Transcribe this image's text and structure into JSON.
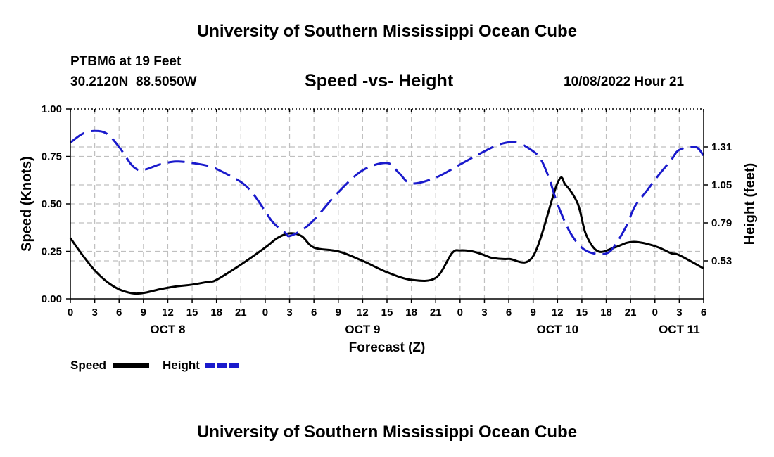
{
  "page": {
    "title": "University of Southern Mississippi Ocean Cube",
    "footer_title": "University of Southern Mississippi Ocean Cube",
    "station": "PTBM6 at 19 Feet",
    "coords": "30.2120N  88.5050W",
    "date_label": "10/08/2022 Hour 21"
  },
  "colors": {
    "speed": "#000000",
    "height": "#1a1acc",
    "grid": "#bfbfbf"
  },
  "chart_data": {
    "type": "line",
    "title": "Speed -vs- Height",
    "xlabel": "Forecast (Z)",
    "ylabel": "Speed (Knots)",
    "y2label": "Height (feet)",
    "xlim": [
      0,
      78
    ],
    "ylim": [
      0,
      1
    ],
    "y2lim": [
      0.27,
      1.57
    ],
    "x_ticks": [
      0,
      3,
      6,
      9,
      12,
      15,
      18,
      21,
      24,
      27,
      30,
      33,
      36,
      39,
      42,
      45,
      48,
      51,
      54,
      57,
      60,
      63,
      66,
      69,
      72,
      75,
      78
    ],
    "x_tick_labels": [
      "0",
      "3",
      "6",
      "9",
      "12",
      "15",
      "18",
      "21",
      "0",
      "3",
      "6",
      "9",
      "12",
      "15",
      "18",
      "21",
      "0",
      "3",
      "6",
      "9",
      "12",
      "15",
      "18",
      "21",
      "0",
      "3",
      "6"
    ],
    "date_labels": [
      {
        "text": "OCT 8",
        "x": 12
      },
      {
        "text": "OCT 9",
        "x": 36
      },
      {
        "text": "OCT 10",
        "x": 60
      },
      {
        "text": "OCT 11",
        "x": 75
      }
    ],
    "y_ticks": [
      0,
      0.25,
      0.5,
      0.75,
      1.0
    ],
    "y_tick_labels": [
      "0.00",
      "0.25",
      "0.50",
      "0.75",
      "1.00"
    ],
    "y2_ticks": [
      0.53,
      0.79,
      1.05,
      1.31
    ],
    "y2_tick_labels": [
      "0.53",
      "0.79",
      "1.05",
      "1.31"
    ],
    "series": [
      {
        "name": "Speed",
        "axis": "left",
        "style": "solid",
        "x": [
          0,
          1.5,
          3,
          4.5,
          6,
          7.5,
          8.5,
          9.5,
          11,
          13,
          15,
          17,
          18,
          21,
          24,
          25.5,
          27,
          28.5,
          30,
          33,
          36,
          39,
          42,
          45,
          47,
          48,
          49.5,
          51,
          52,
          54,
          57,
          60,
          61,
          62.5,
          63.5,
          65,
          67,
          68.5,
          69.5,
          71,
          72.5,
          74,
          75,
          78
        ],
        "values": [
          0.32,
          0.23,
          0.15,
          0.09,
          0.05,
          0.03,
          0.028,
          0.035,
          0.05,
          0.065,
          0.075,
          0.09,
          0.1,
          0.18,
          0.27,
          0.32,
          0.345,
          0.33,
          0.27,
          0.25,
          0.2,
          0.14,
          0.1,
          0.11,
          0.24,
          0.255,
          0.25,
          0.23,
          0.215,
          0.21,
          0.225,
          0.61,
          0.6,
          0.5,
          0.34,
          0.25,
          0.27,
          0.295,
          0.3,
          0.29,
          0.27,
          0.24,
          0.23,
          0.16
        ]
      },
      {
        "name": "Height",
        "axis": "right",
        "style": "dashed",
        "x": [
          0,
          1.5,
          3,
          4.5,
          6,
          7.5,
          8.5,
          9.5,
          11,
          13,
          15,
          17,
          18,
          21,
          22.5,
          24,
          25,
          26.5,
          27,
          28.5,
          30,
          33,
          36,
          39,
          40.5,
          42,
          45,
          48,
          51,
          53,
          55,
          57,
          58,
          59,
          60,
          61.5,
          63,
          64.5,
          66,
          67,
          68.5,
          69.5,
          71,
          72.5,
          74,
          75,
          77,
          78
        ],
        "values": [
          1.34,
          1.4,
          1.42,
          1.4,
          1.31,
          1.19,
          1.15,
          1.16,
          1.19,
          1.21,
          1.2,
          1.18,
          1.16,
          1.07,
          0.99,
          0.87,
          0.79,
          0.72,
          0.7,
          0.74,
          0.81,
          1.0,
          1.15,
          1.2,
          1.13,
          1.06,
          1.1,
          1.19,
          1.28,
          1.33,
          1.34,
          1.28,
          1.22,
          1.09,
          0.92,
          0.73,
          0.62,
          0.58,
          0.58,
          0.63,
          0.77,
          0.9,
          1.01,
          1.12,
          1.22,
          1.29,
          1.31,
          1.25
        ]
      }
    ],
    "legend": {
      "position": "bottom-left",
      "entries": [
        "Speed",
        "Height"
      ]
    }
  }
}
